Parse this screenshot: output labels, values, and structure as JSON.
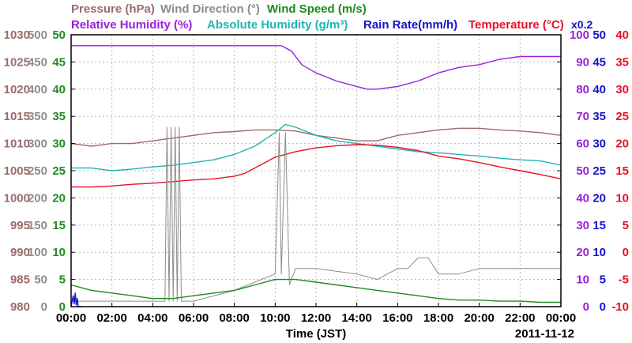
{
  "chart_data": {
    "type": "line",
    "legend": [
      {
        "name": "Pressure (hPa)",
        "color": "#9b6b6b"
      },
      {
        "name": "Wind Direction (°)",
        "color": "#8c8c8c"
      },
      {
        "name": "Wind Speed (m/s)",
        "color": "#1f8a1f"
      },
      {
        "name": "Relative Humidity (%)",
        "color": "#9b1fdc"
      },
      {
        "name": "Absolute Humidity (g/m³)",
        "color": "#1fb4b4"
      },
      {
        "name": "Rain Rate(mm/h)",
        "color": "#1414c8"
      },
      {
        "name": "Temperature (°C)",
        "color": "#e8102a"
      }
    ],
    "rain_scale_note": "x0.2",
    "xlabel": "Time (JST)",
    "date": "2011-11-12",
    "x_ticks": [
      "00:00",
      "02:00",
      "04:00",
      "06:00",
      "08:00",
      "10:00",
      "12:00",
      "14:00",
      "16:00",
      "18:00",
      "20:00",
      "22:00",
      "00:00"
    ],
    "axes": {
      "pressure": {
        "ticks": [
          "980",
          "985",
          "990",
          "995",
          "1000",
          "1005",
          "1010",
          "1015",
          "1020",
          "1025",
          "1030"
        ],
        "ylim": [
          980,
          1030
        ],
        "color": "#9b6b6b"
      },
      "wind_direction": {
        "ticks": [
          "0",
          "50",
          "100",
          "150",
          "200",
          "250",
          "300",
          "350",
          "400",
          "450",
          "500"
        ],
        "ylim": [
          0,
          500
        ],
        "color": "#8c8c8c"
      },
      "wind_speed": {
        "ticks": [
          "0",
          "5",
          "10",
          "15",
          "20",
          "25",
          "30",
          "35",
          "40",
          "45",
          "50"
        ],
        "ylim": [
          0,
          50
        ],
        "color": "#1f8a1f"
      },
      "humidity": {
        "ticks": [
          "0",
          "10",
          "20",
          "30",
          "40",
          "50",
          "60",
          "70",
          "80",
          "90",
          "100"
        ],
        "ylim": [
          0,
          100
        ],
        "color": "#9b1fdc"
      },
      "rain_rate": {
        "ticks": [
          "0",
          "5",
          "10",
          "15",
          "20",
          "25",
          "30",
          "35",
          "40",
          "45",
          "50"
        ],
        "ylim": [
          0,
          50
        ],
        "color": "#1414c8"
      },
      "temperature": {
        "ticks": [
          "-10",
          "-5",
          "0",
          "5",
          "10",
          "15",
          "20",
          "25",
          "30",
          "35",
          "40"
        ],
        "ylim": [
          -10,
          40
        ],
        "color": "#e8102a"
      }
    },
    "grid": true,
    "series": [
      {
        "name": "Pressure (hPa)",
        "axis": "pressure",
        "x": [
          0,
          1,
          2,
          3,
          4,
          5,
          6,
          7,
          8,
          9,
          10,
          11,
          12,
          13,
          14,
          15,
          16,
          17,
          18,
          19,
          20,
          21,
          22,
          23,
          24
        ],
        "y": [
          1010,
          1009.5,
          1010,
          1010,
          1010.5,
          1011,
          1011.5,
          1012,
          1012.2,
          1012.5,
          1012.5,
          1012.3,
          1011.5,
          1011,
          1010.5,
          1010.5,
          1011.5,
          1012,
          1012.5,
          1012.8,
          1012.8,
          1012.5,
          1012.3,
          1012,
          1011.5
        ]
      },
      {
        "name": "Absolute Humidity (g/m³)",
        "axis": "wind_speed",
        "x": [
          0,
          1,
          2,
          3,
          4,
          5,
          6,
          7,
          8,
          9,
          10,
          10.5,
          11,
          12,
          13,
          14,
          15,
          16,
          17,
          18,
          19,
          20,
          21,
          22,
          23,
          24
        ],
        "y": [
          25.5,
          25.5,
          25,
          25.3,
          25.7,
          26,
          26.5,
          27,
          28,
          29.5,
          32,
          33.5,
          33,
          31.5,
          30.5,
          30,
          29.5,
          29,
          28.5,
          28.3,
          28,
          27.7,
          27.3,
          27,
          26.8,
          26
        ]
      },
      {
        "name": "Relative Humidity (%)",
        "axis": "humidity",
        "x": [
          0,
          2,
          4,
          6,
          8,
          9.5,
          10.3,
          10.8,
          11.3,
          12,
          13,
          14,
          14.5,
          15,
          16,
          17,
          18,
          19,
          20,
          21,
          22,
          23,
          24
        ],
        "y": [
          96,
          96,
          96,
          96,
          96,
          96,
          96,
          94,
          89,
          86,
          83,
          81,
          80,
          80,
          81,
          83,
          86,
          88,
          89,
          91,
          92,
          92,
          92
        ]
      },
      {
        "name": "Temperature (°C)",
        "axis": "temperature",
        "x": [
          0,
          1,
          2,
          3,
          4,
          5,
          6,
          7,
          8,
          8.5,
          9,
          9.5,
          10,
          11,
          12,
          13,
          14,
          15,
          16,
          17,
          18,
          19,
          20,
          21,
          22,
          23,
          24
        ],
        "y": [
          12,
          12,
          12.2,
          12.5,
          12.7,
          13,
          13.3,
          13.5,
          14,
          14.5,
          15.5,
          16.5,
          17.5,
          18.5,
          19.2,
          19.6,
          19.8,
          19.7,
          19.3,
          18.7,
          17.7,
          17.2,
          16.5,
          15.7,
          15,
          14.3,
          13.5
        ]
      },
      {
        "name": "Wind Direction (°)",
        "axis": "wind_direction",
        "x": [
          0,
          4.6,
          4.7,
          4.8,
          4.9,
          5.0,
          5.1,
          5.2,
          5.3,
          5.4,
          6,
          8,
          10,
          10.2,
          10.3,
          10.5,
          10.7,
          11,
          12,
          14,
          15,
          16,
          16.5,
          17,
          17.5,
          18,
          19,
          20,
          21,
          22,
          23,
          24
        ],
        "y": [
          10,
          10,
          330,
          10,
          330,
          10,
          330,
          10,
          330,
          10,
          10,
          30,
          60,
          320,
          60,
          320,
          40,
          70,
          70,
          60,
          50,
          70,
          70,
          90,
          90,
          60,
          60,
          70,
          70,
          70,
          70,
          70
        ]
      },
      {
        "name": "Wind Speed (m/s)",
        "axis": "wind_speed",
        "x": [
          0,
          1,
          2,
          3,
          4,
          5,
          6,
          7,
          8,
          9,
          10,
          11,
          12,
          13,
          14,
          15,
          16,
          17,
          18,
          19,
          20,
          21,
          22,
          23,
          24
        ],
        "y": [
          4,
          3,
          2.5,
          2,
          1.5,
          1.5,
          2,
          2.5,
          3,
          4,
          5,
          5,
          4.5,
          4,
          3.5,
          3,
          2.5,
          2,
          1.5,
          1.2,
          1.2,
          1,
          1,
          0.8,
          0.8
        ]
      },
      {
        "name": "Rain Rate(mm/h)",
        "axis": "rain_rate",
        "x": [
          0,
          0.1,
          0.15,
          0.2,
          0.25,
          0.3,
          0.35,
          0.5
        ],
        "y": [
          0,
          2,
          0.5,
          2.5,
          0.3,
          1.5,
          0,
          0
        ]
      }
    ]
  }
}
